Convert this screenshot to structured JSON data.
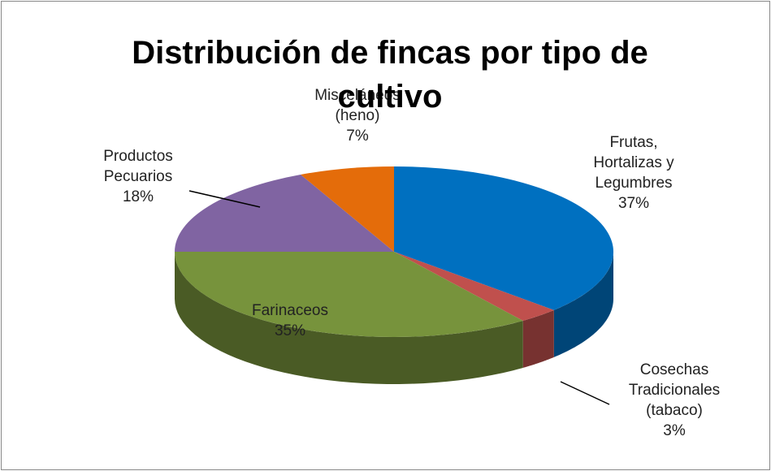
{
  "chart_data": {
    "type": "pie3d",
    "title": "Distribución de fincas por tipo de cultivo",
    "categories": [
      "Frutas, Hortalizas y Legumbres",
      "Cosechas Tradicionales (tabaco)",
      "Farinaceos",
      "Productos Pecuarios",
      "Misceláneos (heno)"
    ],
    "values": [
      37,
      3,
      35,
      18,
      7
    ],
    "value_labels": [
      "37%",
      "3%",
      "35%",
      "18%",
      "7%"
    ],
    "colors": [
      "#0070c0",
      "#c0504d",
      "#77933c",
      "#8064a2",
      "#e46c0a"
    ]
  }
}
